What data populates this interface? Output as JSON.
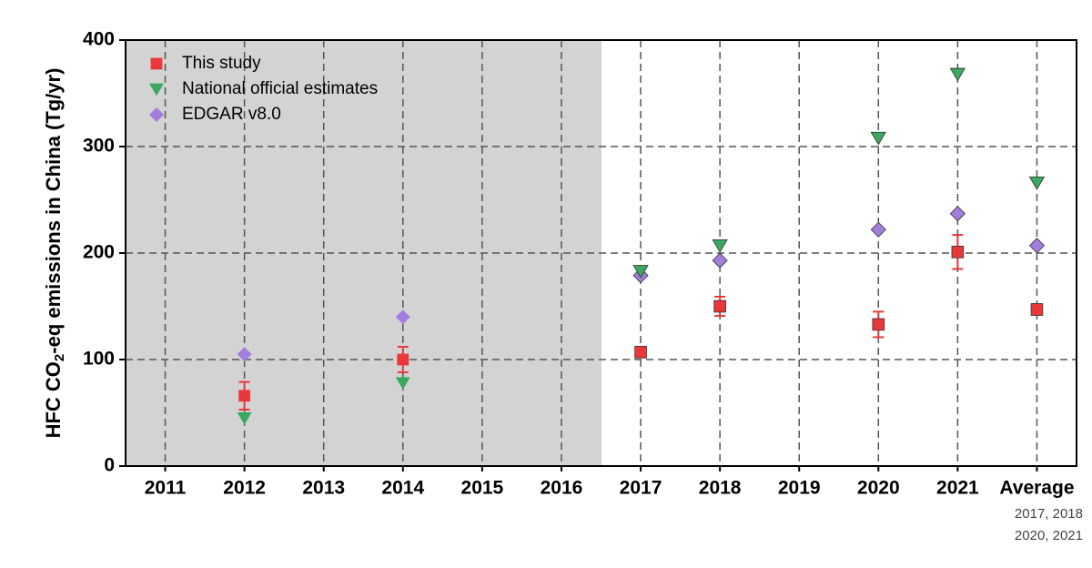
{
  "chart_data": {
    "type": "scatter",
    "y_label": [
      "HFC CO",
      "2",
      "-eq emissions in China (Tg/yr)"
    ],
    "categories": [
      "2011",
      "2012",
      "2013",
      "2014",
      "2015",
      "2016",
      "2017",
      "2018",
      "2019",
      "2020",
      "2021",
      "Average"
    ],
    "category_note": [
      "2017, 2018",
      "2020, 2021"
    ],
    "ylim": [
      0,
      400
    ],
    "yticks": [
      0,
      100,
      200,
      300,
      400
    ],
    "grid": true,
    "series": [
      {
        "name": "This study",
        "color": "#e8383a",
        "marker": "square",
        "values": [
          null,
          66,
          null,
          100,
          null,
          null,
          107,
          150,
          null,
          133,
          201,
          147
        ],
        "errors": [
          null,
          13,
          null,
          12,
          null,
          null,
          5,
          9,
          null,
          12,
          16,
          5
        ]
      },
      {
        "name": "National official estimates",
        "color": "#3aa860",
        "marker": "triangle-down",
        "values": [
          null,
          45,
          null,
          78,
          null,
          null,
          183,
          207,
          null,
          308,
          368,
          266
        ]
      },
      {
        "name": "EDGAR v8.0",
        "color": "#a27fdc",
        "marker": "diamond",
        "values": [
          null,
          105,
          null,
          140,
          null,
          null,
          179,
          193,
          null,
          222,
          237,
          207
        ]
      }
    ]
  }
}
